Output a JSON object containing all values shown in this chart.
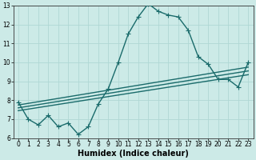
{
  "xlabel": "Humidex (Indice chaleur)",
  "xlim_min": -0.5,
  "xlim_max": 23.5,
  "ylim_min": 6,
  "ylim_max": 13,
  "xticks": [
    0,
    1,
    2,
    3,
    4,
    5,
    6,
    7,
    8,
    9,
    10,
    11,
    12,
    13,
    14,
    15,
    16,
    17,
    18,
    19,
    20,
    21,
    22,
    23
  ],
  "yticks": [
    6,
    7,
    8,
    9,
    10,
    11,
    12,
    13
  ],
  "bg_color": "#cceae7",
  "grid_color": "#b0d8d4",
  "line_color": "#1a6b6b",
  "main_x": [
    0,
    1,
    2,
    3,
    4,
    5,
    6,
    7,
    8,
    9,
    10,
    11,
    12,
    13,
    14,
    15,
    16,
    17,
    18,
    19,
    20,
    21,
    22,
    23
  ],
  "main_y": [
    7.9,
    7.0,
    6.7,
    7.2,
    6.6,
    6.8,
    6.2,
    6.6,
    7.8,
    8.6,
    10.0,
    11.5,
    12.4,
    13.1,
    12.7,
    12.5,
    12.4,
    11.7,
    10.3,
    9.9,
    9.1,
    9.1,
    8.7,
    10.0
  ],
  "trend_lines": [
    {
      "x0": 0,
      "y0": 7.45,
      "x1": 23,
      "y1": 9.35
    },
    {
      "x0": 0,
      "y0": 7.6,
      "x1": 23,
      "y1": 9.55
    },
    {
      "x0": 0,
      "y0": 7.75,
      "x1": 23,
      "y1": 9.75
    }
  ],
  "linewidth": 1.0,
  "tick_fontsize": 5.5,
  "xlabel_fontsize": 7
}
